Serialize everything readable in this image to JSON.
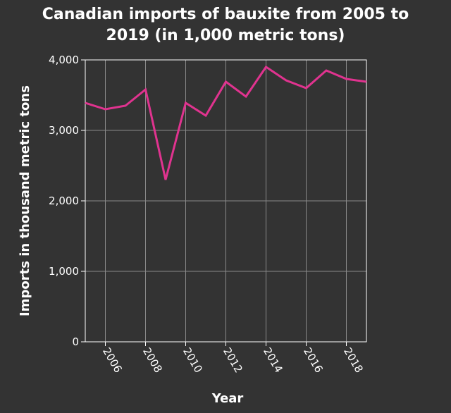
{
  "chart_data": {
    "type": "line",
    "title_line1": "Canadian imports of bauxite from 2005 to",
    "title_line2": "2019 (in 1,000 metric tons)",
    "xlabel": "Year",
    "ylabel": "Imports in thousand metric tons",
    "xlim": [
      2005,
      2019
    ],
    "ylim": [
      0,
      4000
    ],
    "x_ticks": [
      2006,
      2008,
      2010,
      2012,
      2014,
      2016,
      2018
    ],
    "x_tick_labels": [
      "2006",
      "2008",
      "2010",
      "2012",
      "2014",
      "2016",
      "2018"
    ],
    "y_ticks": [
      0,
      1000,
      2000,
      3000,
      4000
    ],
    "y_tick_labels": [
      "0",
      "1,000",
      "2,000",
      "3,000",
      "4,000"
    ],
    "grid": true,
    "series": [
      {
        "color": "#e0338f",
        "x": [
          2005,
          2006,
          2007,
          2008,
          2009,
          2010,
          2011,
          2012,
          2013,
          2014,
          2015,
          2016,
          2017,
          2018,
          2019
        ],
        "values": [
          3390,
          3300,
          3350,
          3580,
          2300,
          3390,
          3210,
          3690,
          3480,
          3900,
          3710,
          3600,
          3850,
          3730,
          3690
        ]
      }
    ]
  }
}
